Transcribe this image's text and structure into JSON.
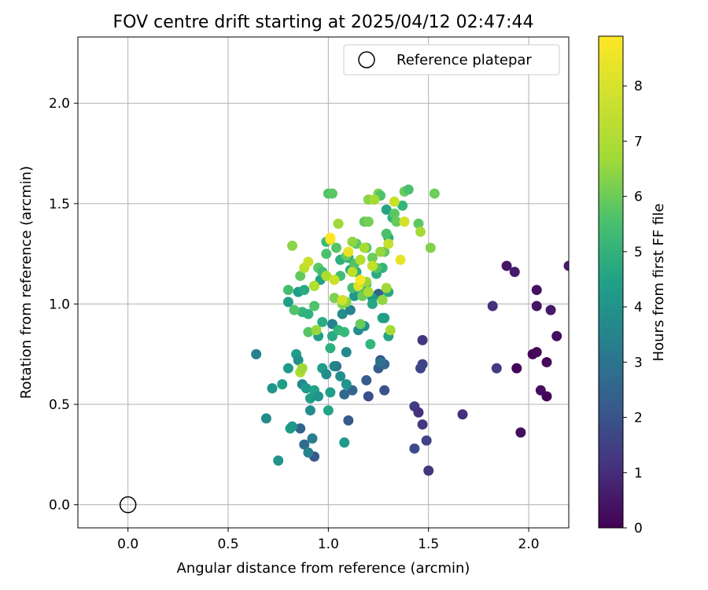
{
  "chart_data": {
    "type": "scatter",
    "title": "FOV centre drift starting at 2025/04/12 02:47:44",
    "xlabel": "Angular distance from reference (arcmin)",
    "ylabel": "Rotation from reference (arcmin)",
    "xlim": [
      -0.25,
      2.2
    ],
    "ylim": [
      -0.115,
      2.33
    ],
    "xticks": [
      0.0,
      0.5,
      1.0,
      1.5,
      2.0
    ],
    "yticks": [
      0.0,
      0.5,
      1.0,
      1.5,
      2.0
    ],
    "tick_format": "0.0",
    "grid": true,
    "legend": {
      "position": "top-right",
      "entries": [
        "Reference platepar"
      ]
    },
    "colorbar": {
      "label": "Hours from first FF file",
      "min": 0,
      "max": 8.9,
      "ticks": [
        0,
        1,
        2,
        3,
        4,
        5,
        6,
        7,
        8
      ],
      "colormap": "viridis"
    },
    "reference_point": {
      "x": 0.0,
      "y": 0.0,
      "marker": "open-circle",
      "color": "#000000"
    },
    "point_color": "#1f77b4",
    "series": [
      {
        "points": [
          [
            1.89,
            1.19,
            0.5
          ],
          [
            1.93,
            1.16,
            0.6
          ],
          [
            2.04,
            1.07,
            0.4
          ],
          [
            2.2,
            1.19,
            0.7
          ],
          [
            2.04,
            0.99,
            0.5
          ],
          [
            2.11,
            0.97,
            0.6
          ],
          [
            2.14,
            0.84,
            0.3
          ],
          [
            2.02,
            0.75,
            0.1
          ],
          [
            2.04,
            0.76,
            0.2
          ],
          [
            1.94,
            0.68,
            0.1
          ],
          [
            2.09,
            0.71,
            0.2
          ],
          [
            2.06,
            0.57,
            0.3
          ],
          [
            2.09,
            0.54,
            0.1
          ],
          [
            1.96,
            0.36,
            0.3
          ],
          [
            1.82,
            0.99,
            1.3
          ],
          [
            1.84,
            0.68,
            1.6
          ],
          [
            1.67,
            0.45,
            1.2
          ],
          [
            1.47,
            0.82,
            1.4
          ],
          [
            1.47,
            0.7,
            1.8
          ],
          [
            1.46,
            0.68,
            1.9
          ],
          [
            1.43,
            0.49,
            1.6
          ],
          [
            1.45,
            0.46,
            1.3
          ],
          [
            1.47,
            0.4,
            1.5
          ],
          [
            1.49,
            0.32,
            1.8
          ],
          [
            1.43,
            0.28,
            2.0
          ],
          [
            1.5,
            0.17,
            1.4
          ],
          [
            1.26,
            0.72,
            2.4
          ],
          [
            1.25,
            0.68,
            2.6
          ],
          [
            1.28,
            0.7,
            2.9
          ],
          [
            1.19,
            0.62,
            2.6
          ],
          [
            1.28,
            0.57,
            2.3
          ],
          [
            1.2,
            0.54,
            2.2
          ],
          [
            1.1,
            0.42,
            2.5
          ],
          [
            1.04,
            0.69,
            3.1
          ],
          [
            1.12,
            0.57,
            2.9
          ],
          [
            1.08,
            0.55,
            3.0
          ],
          [
            0.93,
            0.24,
            2.5
          ],
          [
            0.86,
            0.38,
            2.8
          ],
          [
            0.88,
            0.3,
            3.1
          ],
          [
            0.92,
            0.33,
            3.8
          ],
          [
            0.9,
            0.26,
            4.0
          ],
          [
            1.25,
            1.05,
            2.8
          ],
          [
            1.26,
            0.71,
            3.3
          ],
          [
            0.64,
            0.75,
            3.9
          ],
          [
            0.69,
            0.43,
            4.3
          ],
          [
            0.75,
            0.22,
            4.6
          ],
          [
            0.72,
            0.58,
            4.6
          ],
          [
            0.77,
            0.6,
            5.0
          ],
          [
            0.8,
            0.68,
            4.8
          ],
          [
            0.81,
            0.38,
            5.0
          ],
          [
            0.84,
            0.75,
            4.9
          ],
          [
            0.85,
            0.72,
            4.5
          ],
          [
            0.82,
            0.39,
            4.7
          ],
          [
            0.87,
            0.6,
            4.2
          ],
          [
            0.89,
            0.58,
            4.8
          ],
          [
            0.91,
            0.53,
            4.9
          ],
          [
            0.91,
            0.47,
            4.3
          ],
          [
            0.93,
            0.57,
            5.1
          ],
          [
            0.95,
            0.54,
            4.6
          ],
          [
            0.97,
            0.68,
            4.9
          ],
          [
            0.99,
            0.65,
            4.3
          ],
          [
            1.01,
            0.56,
            5.0
          ],
          [
            1.0,
            0.47,
            5.2
          ],
          [
            1.03,
            0.69,
            4.0
          ],
          [
            1.06,
            0.64,
            4.4
          ],
          [
            1.09,
            0.6,
            4.6
          ],
          [
            1.08,
            0.31,
            4.8
          ],
          [
            1.09,
            0.76,
            4.2
          ],
          [
            1.02,
            0.9,
            3.9
          ],
          [
            1.07,
            0.95,
            4.3
          ],
          [
            1.11,
            0.97,
            4.0
          ],
          [
            1.13,
            1.04,
            4.8
          ],
          [
            1.15,
            0.87,
            4.3
          ],
          [
            1.18,
            0.89,
            4.5
          ],
          [
            1.22,
            1.03,
            4.8
          ],
          [
            1.27,
            0.93,
            5.3
          ],
          [
            1.28,
            0.93,
            5.0
          ],
          [
            1.3,
            0.84,
            5.2
          ],
          [
            1.3,
            1.06,
            5.3
          ],
          [
            0.8,
            1.01,
            5.0
          ],
          [
            0.85,
            1.06,
            4.9
          ],
          [
            0.87,
            0.96,
            5.8
          ],
          [
            0.88,
            1.07,
            5.4
          ],
          [
            0.9,
            0.95,
            5.7
          ],
          [
            0.93,
            1.09,
            5.3
          ],
          [
            0.96,
            1.12,
            5.1
          ],
          [
            0.97,
            1.16,
            5.2
          ],
          [
            0.95,
            0.84,
            5.0
          ],
          [
            0.97,
            0.91,
            5.5
          ],
          [
            1.01,
            0.78,
            5.6
          ],
          [
            1.02,
            0.84,
            5.4
          ],
          [
            1.05,
            0.87,
            5.8
          ],
          [
            1.08,
            0.86,
            6.0
          ],
          [
            1.06,
            1.22,
            5.6
          ],
          [
            1.1,
            1.23,
            5.4
          ],
          [
            1.11,
            1.17,
            5.3
          ],
          [
            1.14,
            1.16,
            5.7
          ],
          [
            1.17,
            1.06,
            5.9
          ],
          [
            1.19,
            1.1,
            5.8
          ],
          [
            1.22,
            1.0,
            5.3
          ],
          [
            1.21,
            0.8,
            5.9
          ],
          [
            1.24,
            1.15,
            5.5
          ],
          [
            1.27,
            1.18,
            5.8
          ],
          [
            1.29,
            1.47,
            5.2
          ],
          [
            1.32,
            1.43,
            5.9
          ],
          [
            1.3,
            1.33,
            5.5
          ],
          [
            1.37,
            1.49,
            5.9
          ],
          [
            0.8,
            1.07,
            6.2
          ],
          [
            0.83,
            0.97,
            6.4
          ],
          [
            0.86,
            1.14,
            6.7
          ],
          [
            0.9,
            0.86,
            6.5
          ],
          [
            0.93,
            0.99,
            6.4
          ],
          [
            0.95,
            1.18,
            6.6
          ],
          [
            0.97,
            1.16,
            6.1
          ],
          [
            0.99,
            1.25,
            6.3
          ],
          [
            0.99,
            1.31,
            6.0
          ],
          [
            1.0,
            1.55,
            6.4
          ],
          [
            1.02,
            1.55,
            6.6
          ],
          [
            1.03,
            1.03,
            7.1
          ],
          [
            1.04,
            1.28,
            6.5
          ],
          [
            1.06,
            1.14,
            6.2
          ],
          [
            1.07,
            1.0,
            7.2
          ],
          [
            1.09,
            1.24,
            6.8
          ],
          [
            1.09,
            1.01,
            7.3
          ],
          [
            1.12,
            1.08,
            6.2
          ],
          [
            1.13,
            1.2,
            6.4
          ],
          [
            1.14,
            1.3,
            6.6
          ],
          [
            1.16,
            0.9,
            6.8
          ],
          [
            1.17,
            1.04,
            6.9
          ],
          [
            1.18,
            1.41,
            6.7
          ],
          [
            1.19,
            1.28,
            6.3
          ],
          [
            1.2,
            1.41,
            7.0
          ],
          [
            1.2,
            1.52,
            7.3
          ],
          [
            1.22,
            1.23,
            6.9
          ],
          [
            1.24,
            1.18,
            6.5
          ],
          [
            1.25,
            1.55,
            7.1
          ],
          [
            1.26,
            1.54,
            6.4
          ],
          [
            1.28,
            1.26,
            6.7
          ],
          [
            1.29,
            1.35,
            6.3
          ],
          [
            1.33,
            1.45,
            6.6
          ],
          [
            1.34,
            1.41,
            6.8
          ],
          [
            1.38,
            1.56,
            6.9
          ],
          [
            1.4,
            1.57,
            6.3
          ],
          [
            1.45,
            1.4,
            6.6
          ],
          [
            1.51,
            1.28,
            7.2
          ],
          [
            1.53,
            1.55,
            6.9
          ],
          [
            0.82,
            1.29,
            7.3
          ],
          [
            0.86,
            0.66,
            7.8
          ],
          [
            0.87,
            0.68,
            7.6
          ],
          [
            0.88,
            1.18,
            8.0
          ],
          [
            0.9,
            1.21,
            8.2
          ],
          [
            0.93,
            1.09,
            7.9
          ],
          [
            0.94,
            0.87,
            7.5
          ],
          [
            0.99,
            1.14,
            7.8
          ],
          [
            1.01,
            1.32,
            8.5
          ],
          [
            1.03,
            1.12,
            8.2
          ],
          [
            1.05,
            1.4,
            7.6
          ],
          [
            1.07,
            1.02,
            8.3
          ],
          [
            1.1,
            1.26,
            8.6
          ],
          [
            1.12,
            1.31,
            7.4
          ],
          [
            1.12,
            1.16,
            8.0
          ],
          [
            1.15,
            1.09,
            8.4
          ],
          [
            1.16,
            1.22,
            7.9
          ],
          [
            1.18,
            1.28,
            7.7
          ],
          [
            1.19,
            1.11,
            7.5
          ],
          [
            1.2,
            1.06,
            7.8
          ],
          [
            1.22,
            1.19,
            8.1
          ],
          [
            1.23,
            1.52,
            7.7
          ],
          [
            1.26,
            1.26,
            7.5
          ],
          [
            1.27,
            1.02,
            7.4
          ],
          [
            1.29,
            1.08,
            7.6
          ],
          [
            1.3,
            1.3,
            8.1
          ],
          [
            1.31,
            0.87,
            7.7
          ],
          [
            1.33,
            1.51,
            8.2
          ],
          [
            1.36,
            1.22,
            8.6
          ],
          [
            1.38,
            1.41,
            8.3
          ],
          [
            1.46,
            1.36,
            7.7
          ],
          [
            1.01,
            1.33,
            8.9
          ],
          [
            1.16,
            1.12,
            8.8
          ]
        ]
      }
    ]
  }
}
